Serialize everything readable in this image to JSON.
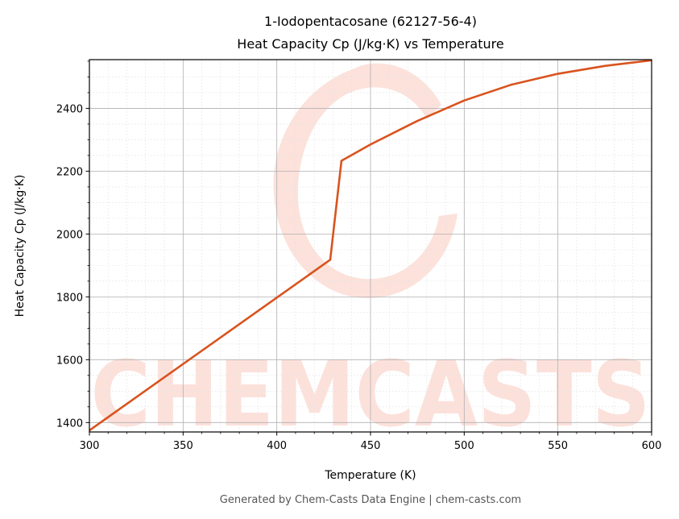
{
  "chart_data": {
    "type": "line",
    "title": "1-Iodopentacosane (62127-56-4)",
    "subtitle": "Heat Capacity Cp (J/kg·K) vs Temperature",
    "xlabel": "Temperature (K)",
    "ylabel": "Heat Capacity Cp (J/kg·K)",
    "xlim": [
      300,
      600
    ],
    "ylim": [
      1370,
      2555
    ],
    "xticks": [
      300,
      350,
      400,
      450,
      500,
      550,
      600
    ],
    "yticks": [
      1400,
      1600,
      1800,
      2000,
      2200,
      2400
    ],
    "grid": true,
    "line_color": "#d9531e",
    "series": [
      {
        "x": [
          300,
          428.5,
          434.5,
          450,
          475,
          500,
          525,
          550,
          575,
          600
        ],
        "y": [
          1375,
          1918,
          2233,
          2285,
          2360,
          2425,
          2475,
          2510,
          2535,
          2553
        ]
      }
    ]
  },
  "watermark": {
    "text": "CHEMCASTS",
    "color": "#fbd5cc"
  },
  "footer": "Generated by Chem-Casts Data Engine | chem-casts.com"
}
